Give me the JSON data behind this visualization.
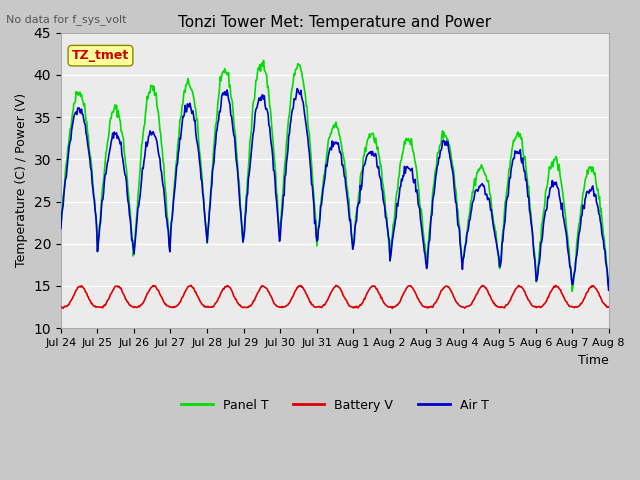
{
  "title": "Tonzi Tower Met: Temperature and Power",
  "subtitle": "No data for f_sys_volt",
  "xlabel": "Time",
  "ylabel": "Temperature (C) / Power (V)",
  "ylim": [
    10,
    45
  ],
  "yticks": [
    10,
    15,
    20,
    25,
    30,
    35,
    40,
    45
  ],
  "n_days": 16,
  "x_labels": [
    "Jul 24",
    "Jul 25",
    "Jul 26",
    "Jul 27",
    "Jul 28",
    "Jul 29",
    "Jul 30",
    "Jul 31",
    "Aug 1",
    "Aug 2",
    "Aug 3",
    "Aug 4",
    "Aug 5",
    "Aug 6",
    "Aug 7",
    "Aug 8"
  ],
  "panel_color": "#00dd00",
  "battery_color": "#dd0000",
  "air_color": "#0000cc",
  "plot_bg": "#ebebeb",
  "grid_color": "#ffffff",
  "annotation_box_color": "#ffff99",
  "annotation_text": "TZ_tmet",
  "annotation_text_color": "#cc0000",
  "legend_labels": [
    "Panel T",
    "Battery V",
    "Air T"
  ],
  "panel_peaks": [
    38,
    36,
    38.5,
    39,
    40.5,
    41.5,
    41,
    34,
    33,
    32.5,
    33,
    29,
    33,
    30,
    29,
    29
  ],
  "air_peaks": [
    36,
    33,
    33,
    36.5,
    38,
    37.5,
    38,
    32,
    31,
    29,
    32,
    27,
    31,
    27,
    26.5,
    26
  ],
  "panel_min": [
    22,
    19,
    19,
    21,
    20,
    21,
    22,
    20,
    20,
    18,
    18,
    18,
    17,
    15,
    15,
    16
  ],
  "air_min": [
    22,
    19,
    19,
    21,
    20,
    20.5,
    21,
    20,
    20,
    18,
    17,
    18,
    17,
    15,
    15,
    16
  ],
  "batt_baseline": 12.5,
  "batt_peak_add": 2.5
}
